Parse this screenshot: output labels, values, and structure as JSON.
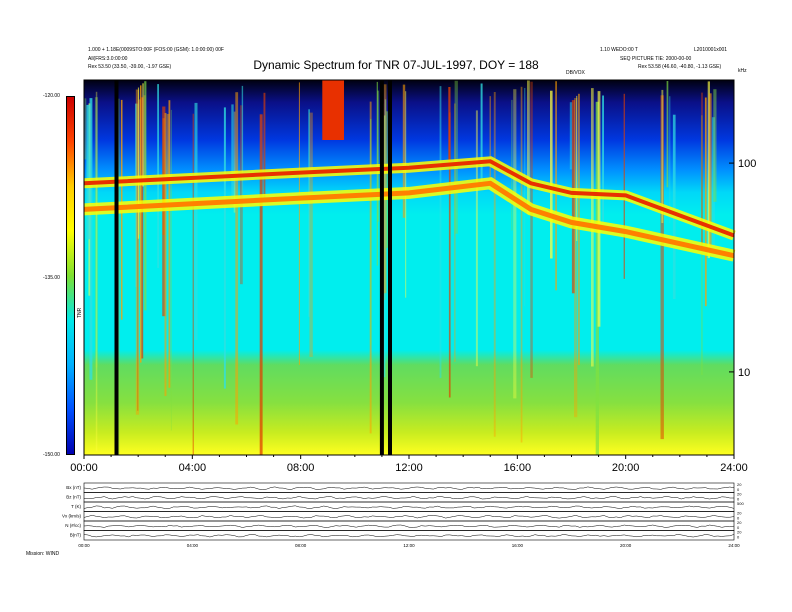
{
  "header": {
    "title": "Dynamic Spectrum for TNR 07-JUL-1997, DOY = 188",
    "left_line1": "1.000 + 1.18E(0009STO:00F (FOS:00 (GSM): 1.0:00:00) 00F",
    "left_line2": "All(FRS:3.0:00:00",
    "left_line3": "Rex    53.50 (33.50, -39.00, -1.97 GSE)",
    "right_line1": "1.10 WEDO:00 T",
    "right_line2": "L2010001x001",
    "right_line3": "SEQ PICTURE TIE: 2000-00-00",
    "right_line4": "Rex    53.58 (46.60, -40.80, -1.13 GSE)",
    "unit_label": "DB/VOX",
    "khz_label": "kHz"
  },
  "colorbar": {
    "ticks": [
      "-120.00",
      "-135.00",
      "-150.00"
    ],
    "unit": "TNR",
    "colors": [
      "#cc0000",
      "#ff4400",
      "#ffcc00",
      "#ffff00",
      "#7fe030",
      "#00e8e8",
      "#00b0ff",
      "#0050ff",
      "#0000b0"
    ]
  },
  "chart_data": {
    "type": "heatmap",
    "title": "Dynamic Spectrum for TNR 07-JUL-1997, DOY = 188",
    "x_ticks": [
      "00:00",
      "04:00",
      "08:00",
      "12:00",
      "16:00",
      "20:00",
      "24:00"
    ],
    "x_range_hours": [
      0,
      24
    ],
    "y_scale": "log",
    "y_range_khz": [
      4,
      250
    ],
    "y_ticks": [
      100,
      10
    ],
    "color_range": [
      -150,
      -120
    ],
    "data_gaps_hours": [
      1.2,
      11.0,
      11.3
    ],
    "lower_band_khz": [
      [
        0,
        60
      ],
      [
        8,
        68
      ],
      [
        12,
        72
      ],
      [
        15,
        80
      ],
      [
        16.5,
        60
      ],
      [
        18,
        52
      ],
      [
        20,
        47
      ],
      [
        24,
        36
      ]
    ],
    "upper_band_khz": [
      [
        0,
        80
      ],
      [
        8,
        90
      ],
      [
        12,
        95
      ],
      [
        15,
        102
      ],
      [
        16.5,
        80
      ],
      [
        18,
        72
      ],
      [
        20,
        70
      ],
      [
        24,
        45
      ]
    ]
  },
  "panels": {
    "labels": [
      "B(nT)",
      "N (#/cc)",
      "Vx (km/s)",
      "T (K)",
      "Bz (nT)",
      "Bx (nT)"
    ],
    "right_ticks": [
      [
        "20",
        "0"
      ],
      [
        "20",
        "0"
      ],
      [
        "20",
        "0"
      ],
      [
        "500"
      ],
      [
        "20",
        "0"
      ],
      [
        "20",
        "0"
      ]
    ],
    "time_ticks": [
      "00:00",
      "04:00",
      "08:00",
      "12:00",
      "16:00",
      "20:00",
      "24:00"
    ],
    "footer": "Mission: WIND"
  }
}
